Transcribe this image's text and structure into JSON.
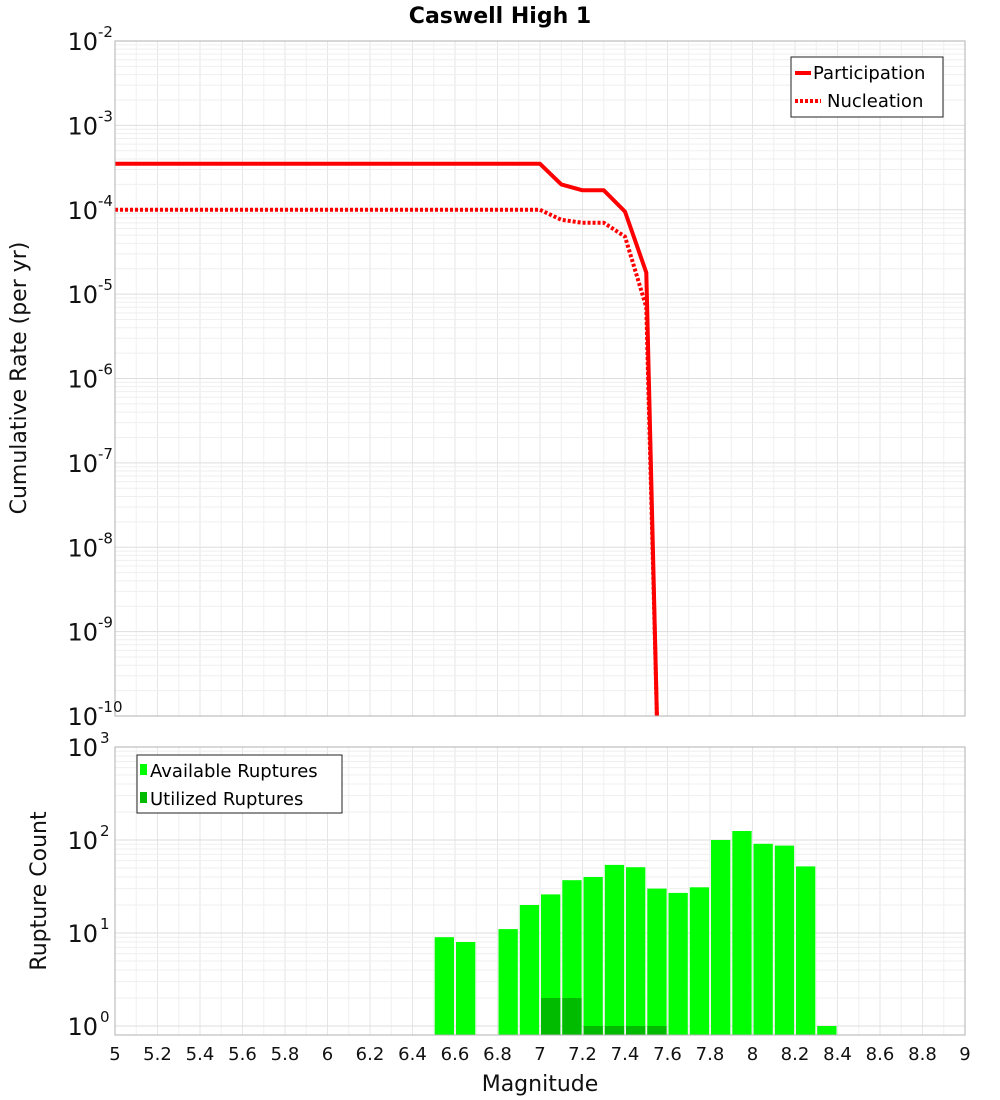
{
  "chart_data": [
    {
      "type": "line",
      "title": "Caswell High 1",
      "xlabel": "",
      "ylabel": "Cumulative Rate (per yr)",
      "xlim": [
        5,
        9
      ],
      "ylim_exp": [
        -10,
        -2
      ],
      "yscale": "log",
      "ytick_exponents": [
        "-10",
        "-9",
        "-8",
        "-7",
        "-6",
        "-5",
        "-4",
        "-3",
        "-2"
      ],
      "legend": {
        "placement": "top-right",
        "entries": [
          "Participation",
          "Nucleation"
        ]
      },
      "series": [
        {
          "name": "Participation",
          "style": "solid",
          "color": "#ff0000",
          "x": [
            5.0,
            7.0,
            7.1,
            7.2,
            7.3,
            7.4,
            7.5,
            7.55
          ],
          "y": [
            0.00035,
            0.00035,
            0.0002,
            0.00017,
            0.00017,
            9.5e-05,
            1.8e-05,
            1e-10
          ]
        },
        {
          "name": "Nucleation",
          "style": "dotted",
          "color": "#ff0000",
          "x": [
            5.0,
            7.0,
            7.1,
            7.2,
            7.3,
            7.4,
            7.5,
            7.55
          ],
          "y": [
            0.0001,
            0.0001,
            7.6e-05,
            7e-05,
            7e-05,
            4.8e-05,
            7e-06,
            1e-10
          ]
        }
      ]
    },
    {
      "type": "bar",
      "title": "",
      "xlabel": "Magnitude",
      "ylabel": "Rupture Count",
      "xlim": [
        5,
        9
      ],
      "ylim": [
        0.8,
        1000
      ],
      "yscale": "log",
      "ytick_exponents": [
        "0",
        "1",
        "2",
        "3"
      ],
      "xtick_labels": [
        "5",
        "5.2",
        "5.4",
        "5.6",
        "5.8",
        "6",
        "6.2",
        "6.4",
        "6.6",
        "6.8",
        "7",
        "7.2",
        "7.4",
        "7.6",
        "7.8",
        "8",
        "8.2",
        "8.4",
        "8.6",
        "8.8",
        "9"
      ],
      "legend": {
        "placement": "top-left",
        "entries": [
          "Available Ruptures",
          "Utilized Ruptures"
        ]
      },
      "series": [
        {
          "name": "Available Ruptures",
          "color": "#00ff00",
          "x": [
            6.55,
            6.65,
            6.85,
            6.95,
            7.05,
            7.15,
            7.25,
            7.35,
            7.45,
            7.55,
            7.65,
            7.75,
            7.85,
            7.95,
            8.05,
            8.15,
            8.25,
            8.35
          ],
          "values": [
            9,
            8,
            11,
            20,
            26,
            37,
            40,
            54,
            51,
            30,
            27,
            31,
            100,
            125,
            91,
            87,
            52,
            1
          ]
        },
        {
          "name": "Utilized Ruptures",
          "color": "#00bb00",
          "x": [
            7.05,
            7.15,
            7.25,
            7.35,
            7.45,
            7.55
          ],
          "values": [
            2,
            2,
            1,
            1,
            1,
            1
          ]
        }
      ]
    }
  ]
}
